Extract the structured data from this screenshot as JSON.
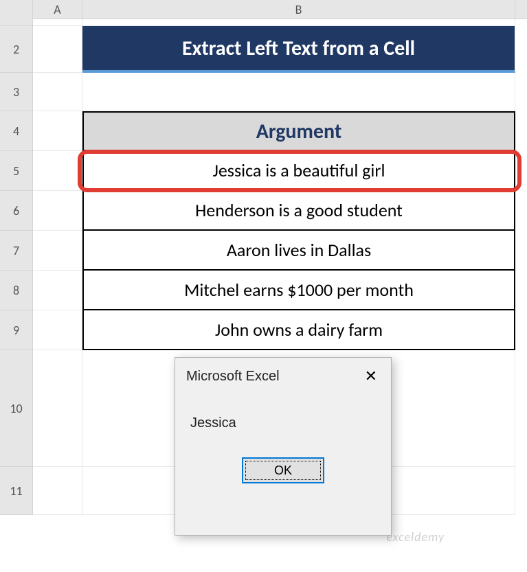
{
  "columns": {
    "a": "A",
    "b": "B"
  },
  "rows": {
    "r2": "2",
    "r3": "3",
    "r4": "4",
    "r5": "5",
    "r6": "6",
    "r7": "7",
    "r8": "8",
    "r9": "9",
    "r10": "10",
    "r11": "11"
  },
  "title": "Extract Left Text from a Cell",
  "table": {
    "header": "Argument",
    "rows": [
      "Jessica is a beautiful girl",
      "Henderson is a good student",
      "Aaron lives in Dallas",
      "Mitchel earns $1000 per month",
      "John owns a dairy farm"
    ]
  },
  "dialog": {
    "title": "Microsoft Excel",
    "message": "Jessica",
    "ok": "OK",
    "close": "✕"
  },
  "watermark": "exceldemy",
  "colors": {
    "title_bg": "#203864",
    "title_underline": "#5b9bd5",
    "header_bg": "#d9d9d9",
    "header_fg": "#203864",
    "highlight": "#e03c31",
    "ok_border": "#0078d7",
    "grid_header_bg": "#e6e6e6"
  }
}
